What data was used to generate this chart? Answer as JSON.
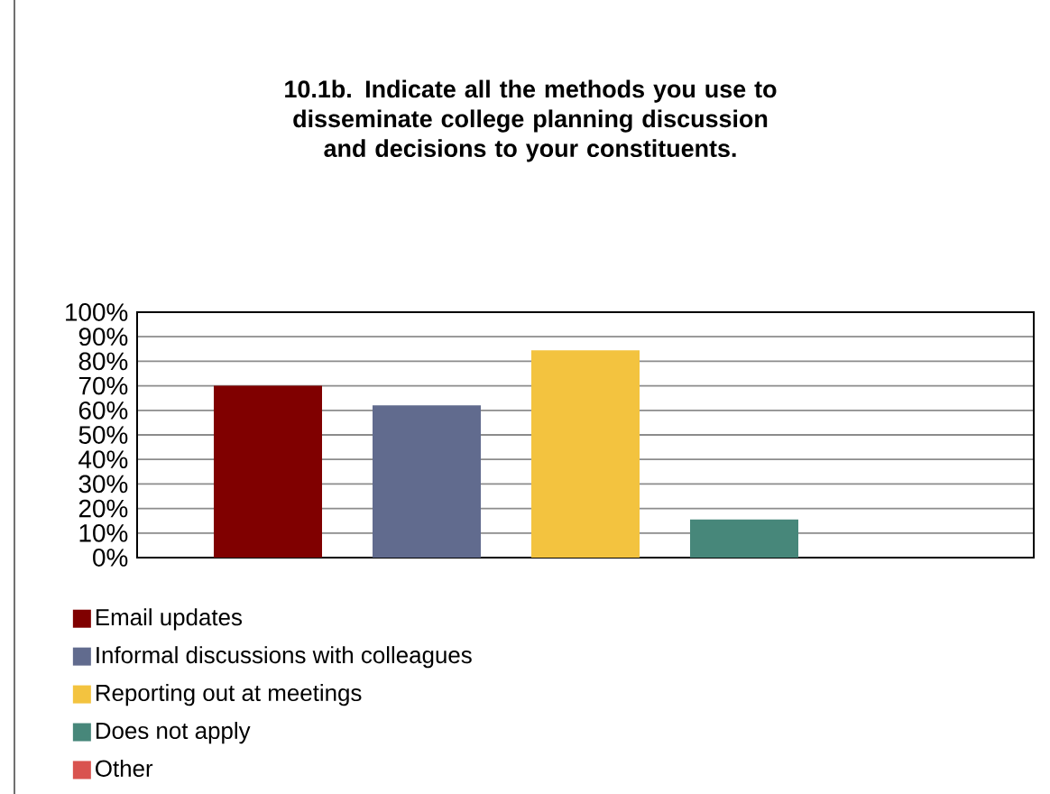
{
  "chart_data": {
    "type": "bar",
    "title": "10.1b. Indicate all the methods you use to disseminate college planning discussion and decisions to your constituents.",
    "categories": [
      null
    ],
    "series": [
      {
        "name": "Email updates",
        "color": "#800000",
        "values": [
          70
        ]
      },
      {
        "name": "Informal discussions with colleagues",
        "color": "#616b8e",
        "values": [
          62
        ]
      },
      {
        "name": "Reporting out at meetings",
        "color": "#f3c33f",
        "values": [
          84.5
        ]
      },
      {
        "name": "Does not apply",
        "color": "#47877a",
        "values": [
          15.5
        ]
      },
      {
        "name": "Other",
        "color": "#d9534f",
        "values": [
          0
        ]
      }
    ],
    "ylim": [
      0,
      100
    ],
    "yticks": [
      {
        "value": 0,
        "label": "0%"
      },
      {
        "value": 10,
        "label": "10%"
      },
      {
        "value": 20,
        "label": "20%"
      },
      {
        "value": 30,
        "label": "30%"
      },
      {
        "value": 40,
        "label": "40%"
      },
      {
        "value": 50,
        "label": "50%"
      },
      {
        "value": 60,
        "label": "60%"
      },
      {
        "value": 70,
        "label": "70%"
      },
      {
        "value": 80,
        "label": "80%"
      },
      {
        "value": 90,
        "label": "90%"
      },
      {
        "value": 100,
        "label": "100%"
      }
    ],
    "grid": "y",
    "legend": "bottom"
  }
}
